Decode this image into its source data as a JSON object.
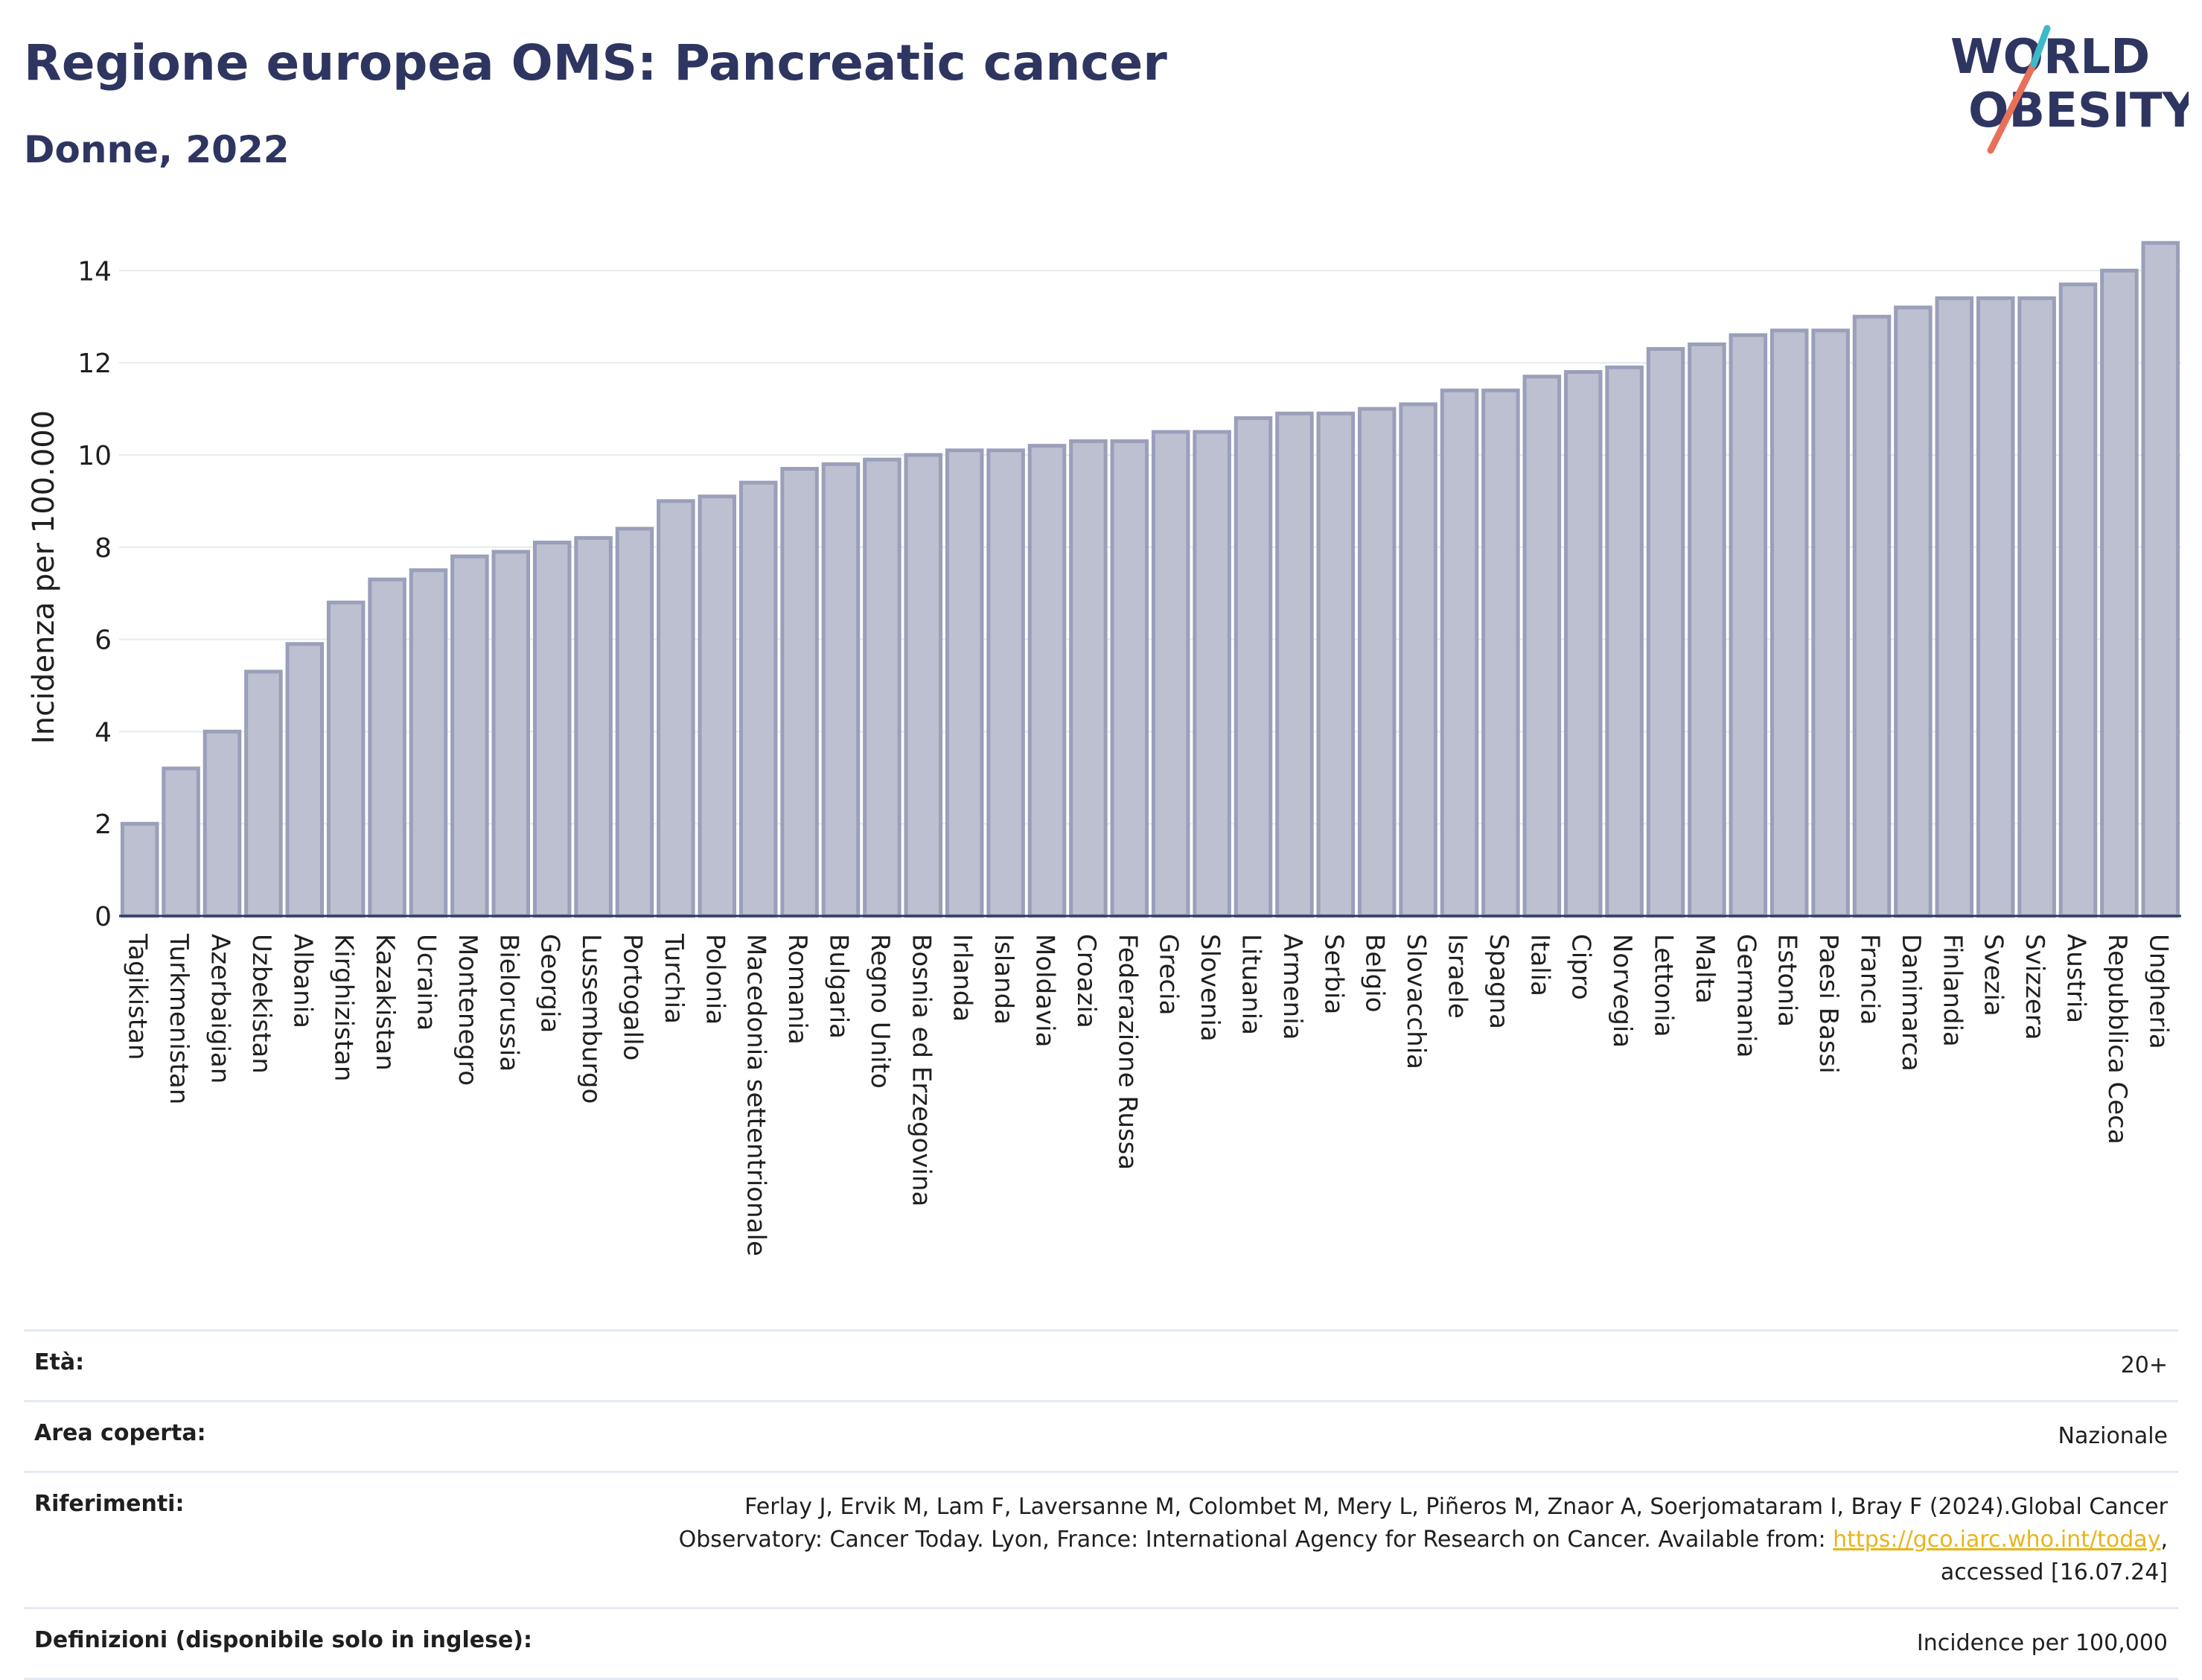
{
  "header": {
    "title": "Regione europea OMS: Pancreatic cancer",
    "subtitle": "Donne, 2022"
  },
  "logo": {
    "line1": "WORLD",
    "line2": "OBESITY"
  },
  "chart_data": {
    "type": "bar",
    "ylabel": "Incidenza per 100.000",
    "xlabel": "",
    "ylim": [
      0,
      14.7
    ],
    "yticks": [
      0,
      2,
      4,
      6,
      8,
      10,
      12,
      14
    ],
    "grid": true,
    "bar_color": "#bcc0d0",
    "bar_edge_color": "#9a9fba",
    "categories": [
      "Tagikistan",
      "Turkmenistan",
      "Azerbaigian",
      "Uzbekistan",
      "Albania",
      "Kirghizistan",
      "Kazakistan",
      "Ucraina",
      "Montenegro",
      "Bielorussia",
      "Georgia",
      "Lussemburgo",
      "Portogallo",
      "Turchia",
      "Polonia",
      "Macedonia settentrionale",
      "Romania",
      "Bulgaria",
      "Regno Unito",
      "Bosnia ed Erzegovina",
      "Irlanda",
      "Islanda",
      "Moldavia",
      "Croazia",
      "Federazione Russa",
      "Grecia",
      "Slovenia",
      "Lituania",
      "Armenia",
      "Serbia",
      "Belgio",
      "Slovacchia",
      "Israele",
      "Spagna",
      "Italia",
      "Cipro",
      "Norvegia",
      "Lettonia",
      "Malta",
      "Germania",
      "Estonia",
      "Paesi Bassi",
      "Francia",
      "Danimarca",
      "Finlandia",
      "Svezia",
      "Svizzera",
      "Austria",
      "Repubblica Ceca",
      "Ungheria"
    ],
    "values": [
      2.0,
      3.2,
      4.0,
      5.3,
      5.9,
      6.8,
      7.3,
      7.5,
      7.8,
      7.9,
      8.1,
      8.2,
      8.4,
      9.0,
      9.1,
      9.4,
      9.7,
      9.8,
      9.9,
      10.0,
      10.1,
      10.1,
      10.2,
      10.3,
      10.3,
      10.5,
      10.5,
      10.8,
      10.9,
      10.9,
      11.0,
      11.1,
      11.4,
      11.4,
      11.7,
      11.8,
      11.9,
      12.3,
      12.4,
      12.6,
      12.7,
      12.7,
      13.0,
      13.2,
      13.4,
      13.4,
      13.4,
      13.7,
      14.0,
      14.6
    ]
  },
  "meta": [
    {
      "label": "Età:",
      "value": "20+"
    },
    {
      "label": "Area coperta:",
      "value": "Nazionale"
    },
    {
      "label": "Riferimenti:",
      "value_line1": "Ferlay J, Ervik M, Lam F, Laversanne M, Colombet M, Mery L, Piñeros M, Znaor A, Soerjomataram I, Bray F (2024).Global Cancer",
      "value_line2_pre": "Observatory: Cancer Today. Lyon, France: International Agency for Research on Cancer. Available from: ",
      "link": "https://gco.iarc.who.int/today",
      "value_line2_post": ",",
      "value_line3": "accessed [16.07.24]"
    },
    {
      "label": "Definizioni (disponibile solo in inglese):",
      "value": "Incidence per 100,000"
    }
  ]
}
